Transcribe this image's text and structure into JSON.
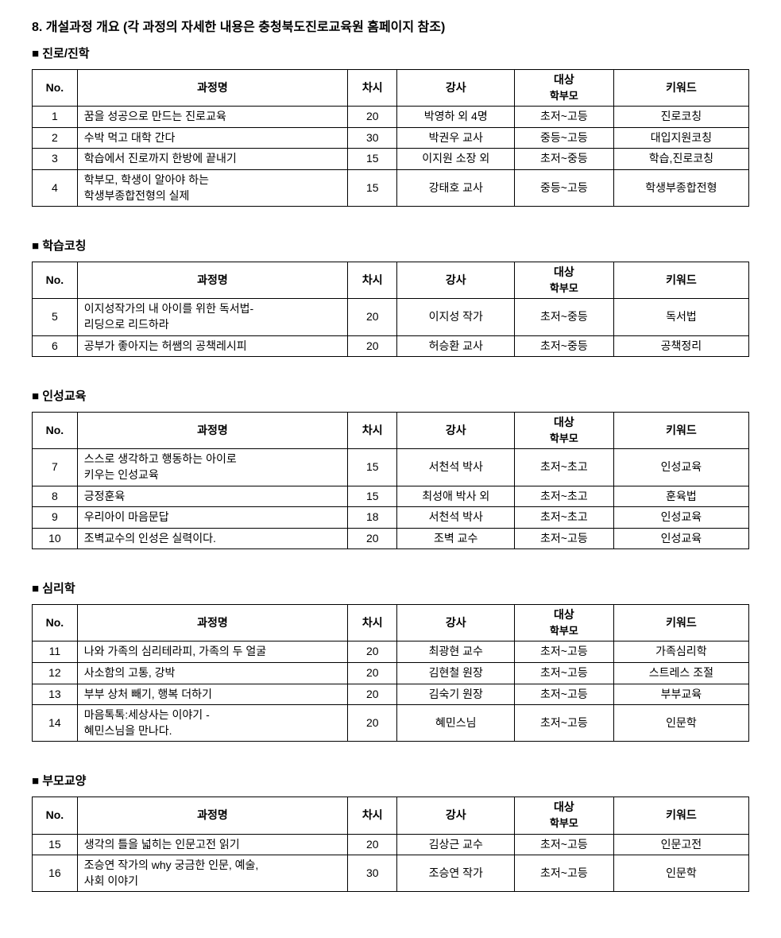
{
  "title": "8. 개설과정 개요 (각 과정의 자세한 내용은 충청북도진로교육원 홈페이지 참조)",
  "headers": {
    "no": "No.",
    "course": "과정명",
    "hours": "차시",
    "instructor": "강사",
    "target_line1": "대상",
    "target_line2": "학부모",
    "keyword": "키워드"
  },
  "sections": [
    {
      "name": "진로/진학",
      "rows": [
        {
          "no": "1",
          "course": "꿈을 성공으로 만드는 진로교육",
          "hours": "20",
          "instructor": "박영하 외 4명",
          "target": "초저~고등",
          "keyword": "진로코칭"
        },
        {
          "no": "2",
          "course": "수박 먹고 대학 간다",
          "hours": "30",
          "instructor": "박권우 교사",
          "target": "중등~고등",
          "keyword": "대입지원코칭"
        },
        {
          "no": "3",
          "course": "학습에서 진로까지 한방에 끝내기",
          "hours": "15",
          "instructor": "이지원 소장 외",
          "target": "초저~중등",
          "keyword": "학습,진로코칭"
        },
        {
          "no": "4",
          "course": "학부모, 학생이 알아야 하는\n학생부종합전형의 실제",
          "hours": "15",
          "instructor": "강태호 교사",
          "target": "중등~고등",
          "keyword": "학생부종합전형"
        }
      ]
    },
    {
      "name": "학습코칭",
      "rows": [
        {
          "no": "5",
          "course": "이지성작가의 내 아이를 위한 독서법-\n리딩으로 리드하라",
          "hours": "20",
          "instructor": "이지성 작가",
          "target": "초저~중등",
          "keyword": "독서법"
        },
        {
          "no": "6",
          "course": "공부가 좋아지는 허쌤의 공책레시피",
          "hours": "20",
          "instructor": "허승환 교사",
          "target": "초저~중등",
          "keyword": "공책정리"
        }
      ]
    },
    {
      "name": "인성교육",
      "rows": [
        {
          "no": "7",
          "course": "스스로 생각하고 행동하는 아이로\n키우는 인성교육",
          "hours": "15",
          "instructor": "서천석 박사",
          "target": "초저~초고",
          "keyword": "인성교육"
        },
        {
          "no": "8",
          "course": "긍정훈육",
          "hours": "15",
          "instructor": "최성애 박사 외",
          "target": "초저~초고",
          "keyword": "훈육법"
        },
        {
          "no": "9",
          "course": "우리아이 마음문답",
          "hours": "18",
          "instructor": "서천석 박사",
          "target": "초저~초고",
          "keyword": "인성교육"
        },
        {
          "no": "10",
          "course": "조벽교수의 인성은 실력이다.",
          "hours": "20",
          "instructor": "조벽 교수",
          "target": "초저~고등",
          "keyword": "인성교육"
        }
      ]
    },
    {
      "name": "심리학",
      "rows": [
        {
          "no": "11",
          "course": "나와 가족의 심리테라피, 가족의 두 얼굴",
          "hours": "20",
          "instructor": "최광현 교수",
          "target": "초저~고등",
          "keyword": "가족심리학"
        },
        {
          "no": "12",
          "course": "사소함의 고통, 강박",
          "hours": "20",
          "instructor": "김현철 원장",
          "target": "초저~고등",
          "keyword": "스트레스 조절"
        },
        {
          "no": "13",
          "course": "부부 상처 빼기, 행복 더하기",
          "hours": "20",
          "instructor": "김숙기 원장",
          "target": "초저~고등",
          "keyword": "부부교육"
        },
        {
          "no": "14",
          "course": "마음톡톡:세상사는 이야기 -\n혜민스님을 만나다.",
          "hours": "20",
          "instructor": "혜민스님",
          "target": "초저~고등",
          "keyword": "인문학"
        }
      ]
    },
    {
      "name": "부모교양",
      "rows": [
        {
          "no": "15",
          "course": "생각의 틀을 넓히는 인문고전 읽기",
          "hours": "20",
          "instructor": "김상근 교수",
          "target": "초저~고등",
          "keyword": "인문고전"
        },
        {
          "no": "16",
          "course": "조승연 작가의 why 궁금한 인문, 예술,\n사회 이야기",
          "hours": "30",
          "instructor": "조승연 작가",
          "target": "초저~고등",
          "keyword": "인문학"
        }
      ]
    }
  ]
}
